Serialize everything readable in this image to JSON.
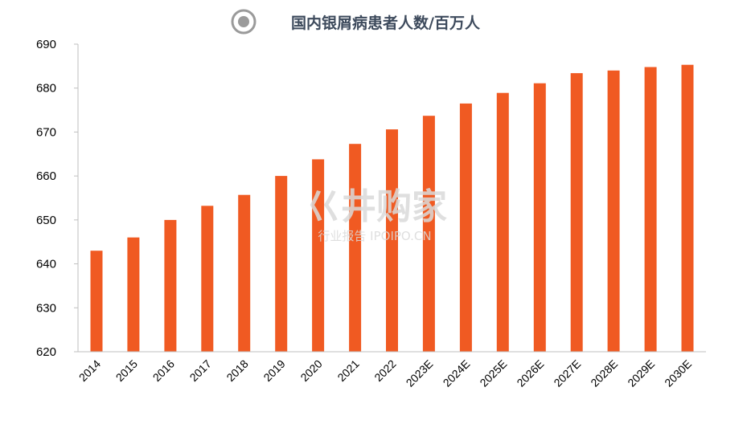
{
  "colors": {
    "bar": "#F05A22",
    "title": "#3D4A5C",
    "axis": "#BFBFBF",
    "watermark": "#DADADA",
    "legend_marker": "#9A9A9A"
  },
  "legend_icon": "radio-circle-icon",
  "watermark": {
    "main": "巜井购家",
    "sub": "行业报告 IPOIPO.CN"
  },
  "chart_data": {
    "type": "bar",
    "title": "国内银屑病患者人数/百万人",
    "categories": [
      "2014",
      "2015",
      "2016",
      "2017",
      "2018",
      "2019",
      "2020",
      "2021",
      "2022",
      "2023E",
      "2024E",
      "2025E",
      "2026E",
      "2027E",
      "2028E",
      "2029E",
      "2030E"
    ],
    "values": [
      643.0,
      646.0,
      650.0,
      653.2,
      655.7,
      660.0,
      663.8,
      667.3,
      670.6,
      673.7,
      676.5,
      678.9,
      681.1,
      683.4,
      684.0,
      684.8,
      685.3
    ],
    "ylim": [
      620,
      690
    ],
    "yticks": [
      "620",
      "630",
      "640",
      "650",
      "660",
      "670",
      "680",
      "690"
    ],
    "grid": false,
    "legend": "top-center"
  }
}
